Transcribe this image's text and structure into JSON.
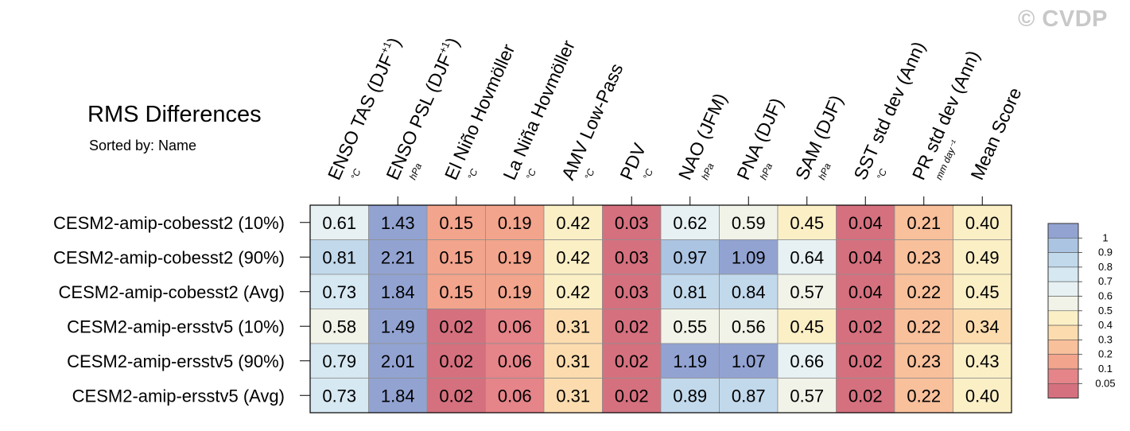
{
  "watermark": "© CVDP",
  "title": "RMS Differences",
  "subtitle": "Sorted by: Name",
  "chart_data": {
    "type": "heatmap",
    "columns": [
      {
        "label": "ENSO TAS (DJF",
        "sup": "+1",
        "close": ")",
        "unit": "°C"
      },
      {
        "label": "ENSO PSL (DJF",
        "sup": "+1",
        "close": ")",
        "unit": "hPa"
      },
      {
        "label": "El Niño Hovmöller",
        "sup": "",
        "close": "",
        "unit": "°C"
      },
      {
        "label": "La Niña Hovmöller",
        "sup": "",
        "close": "",
        "unit": "°C"
      },
      {
        "label": "AMV Low-Pass",
        "sup": "",
        "close": "",
        "unit": "°C"
      },
      {
        "label": "PDV",
        "sup": "",
        "close": "",
        "unit": "°C"
      },
      {
        "label": "NAO (JFM)",
        "sup": "",
        "close": "",
        "unit": "hPa"
      },
      {
        "label": "PNA (DJF)",
        "sup": "",
        "close": "",
        "unit": "hPa"
      },
      {
        "label": "SAM (DJF)",
        "sup": "",
        "close": "",
        "unit": "hPa"
      },
      {
        "label": "SST std dev (Ann)",
        "sup": "",
        "close": "",
        "unit": "°C"
      },
      {
        "label": "PR std dev (Ann)",
        "sup": "",
        "close": "",
        "unit": "mm day⁻¹"
      },
      {
        "label": "Mean Score",
        "sup": "",
        "close": "",
        "unit": ""
      }
    ],
    "rows": [
      "CESM2-amip-cobesst2 (10%)",
      "CESM2-amip-cobesst2 (90%)",
      "CESM2-amip-cobesst2 (Avg)",
      "CESM2-amip-ersstv5 (10%)",
      "CESM2-amip-ersstv5 (90%)",
      "CESM2-amip-ersstv5 (Avg)"
    ],
    "values": [
      [
        "0.61",
        "1.43",
        "0.15",
        "0.19",
        "0.42",
        "0.03",
        "0.62",
        "0.59",
        "0.45",
        "0.04",
        "0.21",
        "0.40"
      ],
      [
        "0.81",
        "2.21",
        "0.15",
        "0.19",
        "0.42",
        "0.03",
        "0.97",
        "1.09",
        "0.64",
        "0.04",
        "0.23",
        "0.49"
      ],
      [
        "0.73",
        "1.84",
        "0.15",
        "0.19",
        "0.42",
        "0.03",
        "0.81",
        "0.84",
        "0.57",
        "0.04",
        "0.22",
        "0.45"
      ],
      [
        "0.58",
        "1.49",
        "0.02",
        "0.06",
        "0.31",
        "0.02",
        "0.55",
        "0.56",
        "0.45",
        "0.02",
        "0.22",
        "0.34"
      ],
      [
        "0.79",
        "2.01",
        "0.02",
        "0.06",
        "0.31",
        "0.02",
        "1.19",
        "1.07",
        "0.66",
        "0.02",
        "0.23",
        "0.43"
      ],
      [
        "0.73",
        "1.84",
        "0.02",
        "0.06",
        "0.31",
        "0.02",
        "0.89",
        "0.87",
        "0.57",
        "0.02",
        "0.22",
        "0.40"
      ]
    ],
    "legend": {
      "position": "right",
      "levels": [
        "1",
        "0.9",
        "0.8",
        "0.7",
        "0.6",
        "0.5",
        "0.4",
        "0.3",
        "0.2",
        "0.1",
        "0.05"
      ],
      "thresholds": [
        1,
        0.9,
        0.8,
        0.7,
        0.6,
        0.5,
        0.4,
        0.3,
        0.2,
        0.1,
        0.05
      ],
      "colors": [
        "#92a3d2",
        "#abc4e2",
        "#c2d9ec",
        "#d6e8f2",
        "#e7f1f3",
        "#f2f3e8",
        "#fbefc6",
        "#fcdcae",
        "#f8c09b",
        "#f3a48c",
        "#e58489",
        "#d5707e"
      ]
    }
  }
}
